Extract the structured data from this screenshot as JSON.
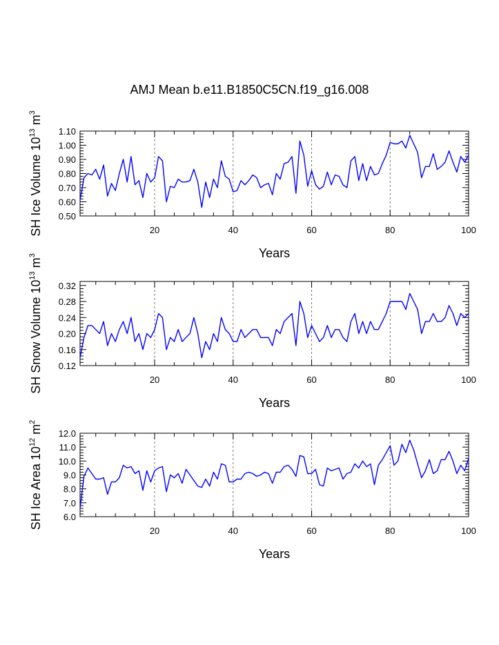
{
  "title": "AMJ Mean b.e11.B1850C5CN.f19_g16.008",
  "colors": {
    "line": "#0000ff",
    "axis": "#000000",
    "grid": "#555555"
  },
  "chart_data": [
    {
      "type": "line",
      "title": "AMJ Mean b.e11.B1850C5CN.f19_g16.008",
      "xlabel": "Years",
      "ylabel": "SH Ice Volume 10",
      "ylabel_exp": "13",
      "ylabel_unit": " m",
      "ylabel_unit_exp": "3",
      "xlim": [
        1,
        100
      ],
      "ylim": [
        0.5,
        1.1
      ],
      "xticks": [
        20,
        40,
        60,
        80,
        100
      ],
      "xtick_labels": [
        "20",
        "40",
        "60",
        "80",
        "100"
      ],
      "yticks": [
        0.5,
        0.6,
        0.7,
        0.8,
        0.9,
        1.0,
        1.1
      ],
      "ytick_labels": [
        "0.50",
        "0.60",
        "0.70",
        "0.80",
        "0.90",
        "1.00",
        "1.10"
      ],
      "vlines": [
        20,
        40,
        60,
        80
      ],
      "x": [
        1,
        2,
        3,
        4,
        5,
        6,
        7,
        8,
        9,
        10,
        11,
        12,
        13,
        14,
        15,
        16,
        17,
        18,
        19,
        20,
        21,
        22,
        23,
        24,
        25,
        26,
        27,
        28,
        29,
        30,
        31,
        32,
        33,
        34,
        35,
        36,
        37,
        38,
        39,
        40,
        41,
        42,
        43,
        44,
        45,
        46,
        47,
        48,
        49,
        50,
        51,
        52,
        53,
        54,
        55,
        56,
        57,
        58,
        59,
        60,
        61,
        62,
        63,
        64,
        65,
        66,
        67,
        68,
        69,
        70,
        71,
        72,
        73,
        74,
        75,
        76,
        77,
        78,
        79,
        80,
        81,
        82,
        83,
        84,
        85,
        86,
        87,
        88,
        89,
        90,
        91,
        92,
        93,
        94,
        95,
        96,
        97,
        98,
        99,
        100
      ],
      "series": [
        {
          "name": "SH Ice Volume",
          "values": [
            0.61,
            0.77,
            0.8,
            0.79,
            0.83,
            0.76,
            0.86,
            0.64,
            0.73,
            0.68,
            0.8,
            0.9,
            0.74,
            0.92,
            0.72,
            0.75,
            0.63,
            0.8,
            0.74,
            0.77,
            0.92,
            0.89,
            0.6,
            0.71,
            0.7,
            0.76,
            0.74,
            0.74,
            0.75,
            0.83,
            0.74,
            0.56,
            0.74,
            0.63,
            0.76,
            0.7,
            0.89,
            0.78,
            0.76,
            0.67,
            0.68,
            0.75,
            0.72,
            0.75,
            0.79,
            0.77,
            0.7,
            0.72,
            0.73,
            0.65,
            0.8,
            0.76,
            0.87,
            0.88,
            0.92,
            0.66,
            1.03,
            0.93,
            0.71,
            0.82,
            0.72,
            0.69,
            0.71,
            0.81,
            0.72,
            0.79,
            0.78,
            0.72,
            0.7,
            0.89,
            0.92,
            0.75,
            0.87,
            0.75,
            0.85,
            0.79,
            0.8,
            0.87,
            0.93,
            1.02,
            1.01,
            1.01,
            1.03,
            0.98,
            1.07,
            1.01,
            0.95,
            0.77,
            0.85,
            0.85,
            0.94,
            0.83,
            0.85,
            0.88,
            0.96,
            0.88,
            0.81,
            0.92,
            0.88,
            0.93
          ]
        }
      ]
    },
    {
      "type": "line",
      "xlabel": "Years",
      "ylabel": "SH Snow Volume 10",
      "ylabel_exp": "13",
      "ylabel_unit": " m",
      "ylabel_unit_exp": "3",
      "xlim": [
        1,
        100
      ],
      "ylim": [
        0.12,
        0.33
      ],
      "xticks": [
        20,
        40,
        60,
        80,
        100
      ],
      "xtick_labels": [
        "20",
        "40",
        "60",
        "80",
        "100"
      ],
      "yticks": [
        0.12,
        0.16,
        0.2,
        0.24,
        0.28,
        0.32
      ],
      "ytick_labels": [
        "0.12",
        "0.16",
        "0.20",
        "0.24",
        "0.28",
        "0.32"
      ],
      "vlines": [
        20,
        40,
        60,
        80
      ],
      "x": [
        1,
        2,
        3,
        4,
        5,
        6,
        7,
        8,
        9,
        10,
        11,
        12,
        13,
        14,
        15,
        16,
        17,
        18,
        19,
        20,
        21,
        22,
        23,
        24,
        25,
        26,
        27,
        28,
        29,
        30,
        31,
        32,
        33,
        34,
        35,
        36,
        37,
        38,
        39,
        40,
        41,
        42,
        43,
        44,
        45,
        46,
        47,
        48,
        49,
        50,
        51,
        52,
        53,
        54,
        55,
        56,
        57,
        58,
        59,
        60,
        61,
        62,
        63,
        64,
        65,
        66,
        67,
        68,
        69,
        70,
        71,
        72,
        73,
        74,
        75,
        76,
        77,
        78,
        79,
        80,
        81,
        82,
        83,
        84,
        85,
        86,
        87,
        88,
        89,
        90,
        91,
        92,
        93,
        94,
        95,
        96,
        97,
        98,
        99,
        100
      ],
      "series": [
        {
          "name": "SH Snow Volume",
          "values": [
            0.14,
            0.19,
            0.22,
            0.22,
            0.21,
            0.2,
            0.23,
            0.17,
            0.2,
            0.18,
            0.21,
            0.23,
            0.2,
            0.24,
            0.18,
            0.2,
            0.16,
            0.2,
            0.19,
            0.21,
            0.25,
            0.24,
            0.16,
            0.19,
            0.18,
            0.21,
            0.18,
            0.19,
            0.2,
            0.24,
            0.2,
            0.14,
            0.18,
            0.16,
            0.2,
            0.18,
            0.24,
            0.21,
            0.2,
            0.18,
            0.18,
            0.21,
            0.19,
            0.2,
            0.21,
            0.21,
            0.19,
            0.19,
            0.19,
            0.17,
            0.21,
            0.2,
            0.23,
            0.24,
            0.25,
            0.17,
            0.28,
            0.25,
            0.19,
            0.22,
            0.2,
            0.18,
            0.19,
            0.22,
            0.19,
            0.21,
            0.21,
            0.19,
            0.18,
            0.23,
            0.25,
            0.2,
            0.23,
            0.2,
            0.23,
            0.21,
            0.21,
            0.23,
            0.25,
            0.28,
            0.28,
            0.28,
            0.28,
            0.26,
            0.3,
            0.28,
            0.26,
            0.2,
            0.23,
            0.23,
            0.25,
            0.23,
            0.23,
            0.24,
            0.27,
            0.25,
            0.22,
            0.25,
            0.24,
            0.25
          ]
        }
      ]
    },
    {
      "type": "line",
      "xlabel": "Years",
      "ylabel": "SH Ice Area 10",
      "ylabel_exp": "12",
      "ylabel_unit": " m",
      "ylabel_unit_exp": "2",
      "xlim": [
        1,
        100
      ],
      "ylim": [
        6.0,
        12.0
      ],
      "xticks": [
        20,
        40,
        60,
        80,
        100
      ],
      "xtick_labels": [
        "20",
        "40",
        "60",
        "80",
        "100"
      ],
      "yticks": [
        6.0,
        7.0,
        8.0,
        9.0,
        10.0,
        11.0,
        12.0
      ],
      "ytick_labels": [
        "6.0",
        "7.0",
        "8.0",
        "9.0",
        "10.0",
        "11.0",
        "12.0"
      ],
      "vlines": [
        20,
        40,
        60,
        80
      ],
      "x": [
        1,
        2,
        3,
        4,
        5,
        6,
        7,
        8,
        9,
        10,
        11,
        12,
        13,
        14,
        15,
        16,
        17,
        18,
        19,
        20,
        21,
        22,
        23,
        24,
        25,
        26,
        27,
        28,
        29,
        30,
        31,
        32,
        33,
        34,
        35,
        36,
        37,
        38,
        39,
        40,
        41,
        42,
        43,
        44,
        45,
        46,
        47,
        48,
        49,
        50,
        51,
        52,
        53,
        54,
        55,
        56,
        57,
        58,
        59,
        60,
        61,
        62,
        63,
        64,
        65,
        66,
        67,
        68,
        69,
        70,
        71,
        72,
        73,
        74,
        75,
        76,
        77,
        78,
        79,
        80,
        81,
        82,
        83,
        84,
        85,
        86,
        87,
        88,
        89,
        90,
        91,
        92,
        93,
        94,
        95,
        96,
        97,
        98,
        99,
        100
      ],
      "series": [
        {
          "name": "SH Ice Area",
          "values": [
            6.6,
            8.9,
            9.5,
            9.1,
            8.7,
            8.7,
            8.8,
            7.6,
            8.5,
            8.5,
            8.8,
            9.7,
            9.5,
            9.6,
            9.1,
            9.3,
            7.9,
            9.3,
            8.5,
            9.3,
            9.5,
            9.6,
            7.8,
            9.0,
            8.8,
            9.1,
            8.4,
            9.4,
            9.0,
            8.6,
            8.2,
            8.1,
            8.7,
            8.2,
            9.2,
            8.7,
            9.8,
            9.7,
            8.5,
            8.5,
            8.7,
            8.7,
            9.1,
            9.2,
            9.1,
            8.9,
            9.0,
            9.2,
            9.1,
            8.4,
            9.2,
            9.2,
            9.6,
            9.7,
            9.4,
            8.9,
            10.4,
            10.3,
            9.1,
            9.1,
            9.4,
            8.3,
            8.2,
            9.5,
            9.3,
            9.4,
            9.5,
            8.7,
            9.1,
            9.2,
            9.8,
            9.5,
            10.0,
            9.6,
            9.8,
            8.3,
            9.7,
            10.1,
            10.6,
            11.1,
            9.7,
            10.0,
            11.2,
            10.6,
            11.5,
            10.8,
            9.8,
            8.8,
            9.3,
            10.1,
            9.1,
            9.3,
            10.1,
            10.1,
            10.7,
            10.0,
            9.1,
            9.7,
            9.3,
            10.2
          ]
        }
      ]
    }
  ]
}
